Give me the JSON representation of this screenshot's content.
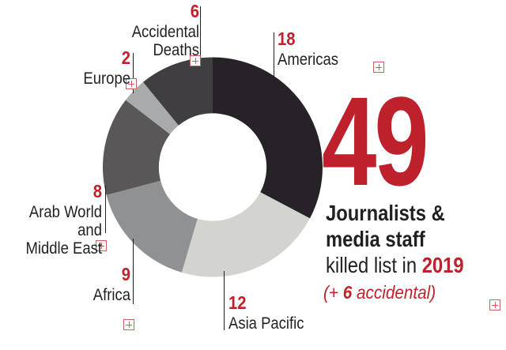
{
  "colors": {
    "accent-red": "#be212b",
    "marker-red": "#d06060",
    "text-dark": "#231f20",
    "line-dark": "#231f20",
    "bg": "#ffffff"
  },
  "chart_data": {
    "type": "donut",
    "title": "Journalists & media staff killed list in 2019",
    "total": 49,
    "accidental_extra": 6,
    "start_angle_deg": 0,
    "direction": "clockwise",
    "inner_radius_ratio": 0.49,
    "legend_position": "callouts",
    "segments": [
      {
        "label": "Americas",
        "value": 18,
        "color": "#272227"
      },
      {
        "label": "Asia Pacific",
        "value": 12,
        "color": "#d3d3d0"
      },
      {
        "label": "Africa",
        "value": 9,
        "color": "#8f9193"
      },
      {
        "label": "Arab World and Middle East",
        "value": 8,
        "color": "#5a5758",
        "label_lines": [
          "Arab World and",
          "Middle East"
        ]
      },
      {
        "label": "Europe",
        "value": 2,
        "color": "#a9aaac"
      },
      {
        "label": "Accidental Deaths",
        "value": 6,
        "color": "#413e41",
        "label_lines": [
          "Accidental",
          "Deaths"
        ]
      }
    ]
  },
  "headline": {
    "big_number": "49",
    "line1": "Journalists &",
    "line2": "media staff",
    "line3_prefix": "killed list in ",
    "line3_year": "2019",
    "note_open": "(+ ",
    "note_bold": "6",
    "note_close": " accidental)"
  }
}
